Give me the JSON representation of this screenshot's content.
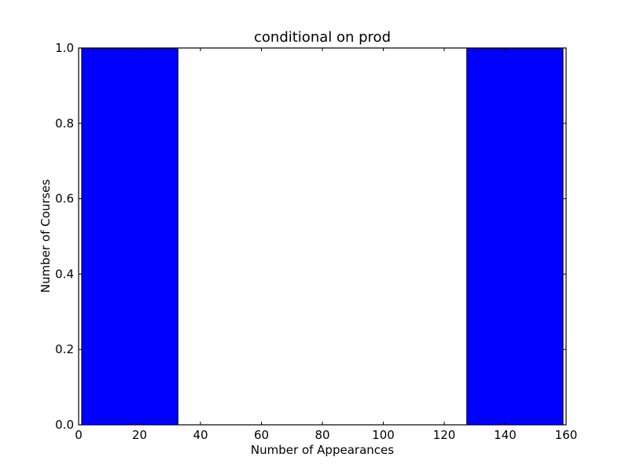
{
  "chart_data": {
    "type": "bar",
    "title": "conditional on prod",
    "xlabel": "Number of Appearances",
    "ylabel": "Number of Courses",
    "xlim": [
      0,
      160
    ],
    "ylim": [
      0,
      1.0
    ],
    "xticks": [
      0,
      20,
      40,
      60,
      80,
      100,
      120,
      140,
      160
    ],
    "xtick_labels": [
      "0",
      "20",
      "40",
      "60",
      "80",
      "100",
      "120",
      "140",
      "160"
    ],
    "yticks": [
      0.0,
      0.2,
      0.4,
      0.6,
      0.8,
      1.0
    ],
    "ytick_labels": [
      "0.0",
      "0.2",
      "0.4",
      "0.6",
      "0.8",
      "1.0"
    ],
    "grid": false,
    "legend": "none",
    "bar_color": "#0000ff",
    "bins": [
      {
        "x0": 1,
        "x1": 32.6,
        "value": 1
      },
      {
        "x0": 32.6,
        "x1": 64.2,
        "value": 0
      },
      {
        "x0": 64.2,
        "x1": 95.8,
        "value": 0
      },
      {
        "x0": 95.8,
        "x1": 127.4,
        "value": 0
      },
      {
        "x0": 127.4,
        "x1": 159,
        "value": 1
      }
    ]
  }
}
